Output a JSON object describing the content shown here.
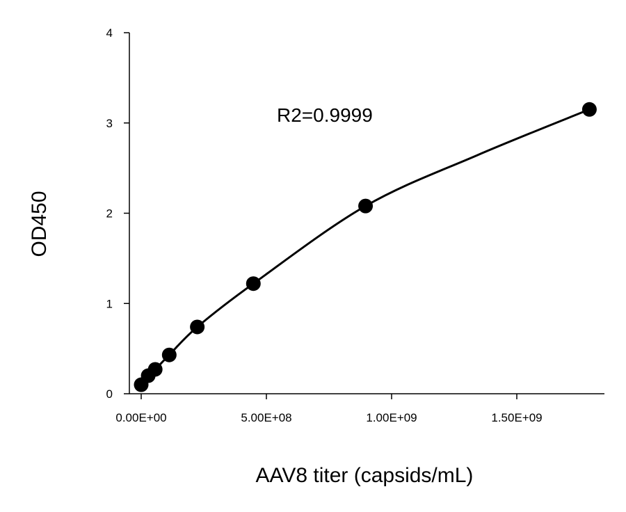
{
  "chart_data": {
    "type": "scatter",
    "xlabel": "AAV8 titer (capsids/mL)",
    "ylabel": "OD450",
    "annotation": "R2=0.9999",
    "xlim": [
      -50000000,
      1850000000
    ],
    "ylim": [
      0,
      4
    ],
    "x_ticks": [
      0,
      500000000,
      1000000000,
      1500000000
    ],
    "x_tick_labels": [
      "0.00E+00",
      "5.00E+08",
      "1.00E+09",
      "1.50E+09"
    ],
    "y_ticks": [
      0,
      1,
      2,
      3,
      4
    ],
    "y_tick_labels": [
      "0",
      "1",
      "2",
      "3",
      "4"
    ],
    "grid": false,
    "colors": {
      "marker": "#000000",
      "line": "#000000"
    },
    "series": [
      {
        "x": [
          0,
          28000000,
          56000000,
          112000000,
          224000000,
          448000000,
          896000000,
          1790000000
        ],
        "y": [
          0.1,
          0.2,
          0.27,
          0.43,
          0.74,
          1.22,
          2.08,
          3.15
        ]
      }
    ],
    "fit_curve": {
      "x": [
        0,
        28000000,
        56000000,
        112000000,
        224000000,
        448000000,
        896000000,
        1340000000,
        1790000000
      ],
      "y": [
        0.1,
        0.2,
        0.27,
        0.43,
        0.74,
        1.22,
        2.08,
        2.64,
        3.15
      ]
    }
  }
}
